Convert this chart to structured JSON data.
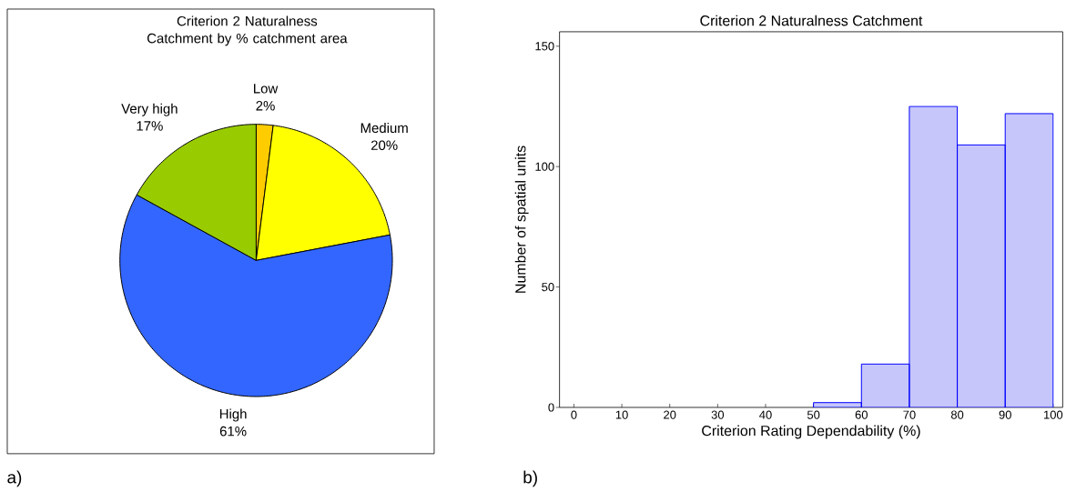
{
  "chart_data": [
    {
      "type": "pie",
      "title": "Criterion 2 Naturalness Catchment by % catchment area",
      "categories": [
        "Low",
        "Medium",
        "High",
        "Very high"
      ],
      "values": [
        2,
        20,
        61,
        17
      ],
      "colors": [
        "#ffcc00",
        "#ffff00",
        "#3366ff",
        "#99cc00"
      ],
      "value_labels": [
        "2%",
        "20%",
        "61%",
        "17%"
      ],
      "annotations": [
        "a)"
      ]
    },
    {
      "type": "histogram",
      "title": "Criterion 2 Naturalness Catchment",
      "xlabel": "Criterion Rating Dependability (%)",
      "ylabel": "Number of spatial units",
      "bins": [
        50,
        60,
        70,
        80,
        90,
        100
      ],
      "values": [
        2,
        18,
        125,
        109,
        122
      ],
      "color": "#c6c6fa",
      "xlim": [
        -3,
        102
      ],
      "ylim": [
        0,
        156
      ],
      "xticks": [
        0,
        10,
        20,
        30,
        40,
        50,
        60,
        70,
        80,
        90,
        100
      ],
      "yticks": [
        0,
        50,
        100,
        150
      ],
      "annotations": [
        "b)"
      ]
    }
  ]
}
